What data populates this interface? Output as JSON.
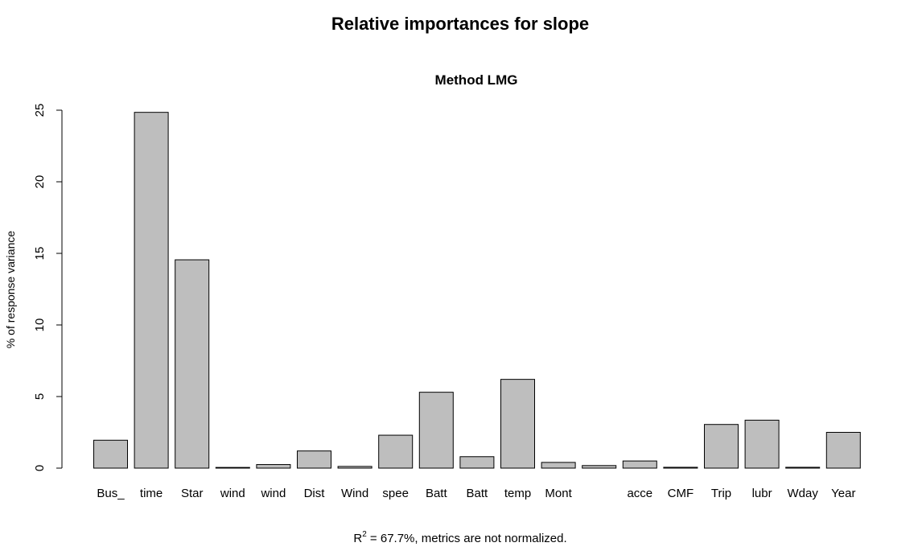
{
  "chart_data": {
    "type": "bar",
    "title": "Relative importances for slope",
    "subtitle": "Method LMG",
    "xlabel": "",
    "ylabel": "% of response variance",
    "ylim": [
      0,
      25
    ],
    "yticks": [
      0,
      5,
      10,
      15,
      20,
      25
    ],
    "categories": [
      "Bus_",
      "time",
      "Star",
      "wind",
      "wind",
      "Dist",
      "Wind",
      "spee",
      "Batt",
      "Batt",
      "temp",
      "Mont",
      "",
      "acce",
      "CMF",
      "Trip",
      "lubr",
      "Wday",
      "Year"
    ],
    "values": [
      1.95,
      24.85,
      14.55,
      0.05,
      0.25,
      1.2,
      0.12,
      2.3,
      5.3,
      0.8,
      6.2,
      0.4,
      0.18,
      0.5,
      0.06,
      3.05,
      3.35,
      0.06,
      2.5
    ],
    "grid": false,
    "legend": "none",
    "bar_color": "#bebebe",
    "footnote": {
      "r_label": "R",
      "r_sup": "2",
      "text": " = 67.7%, metrics are not normalized."
    }
  }
}
